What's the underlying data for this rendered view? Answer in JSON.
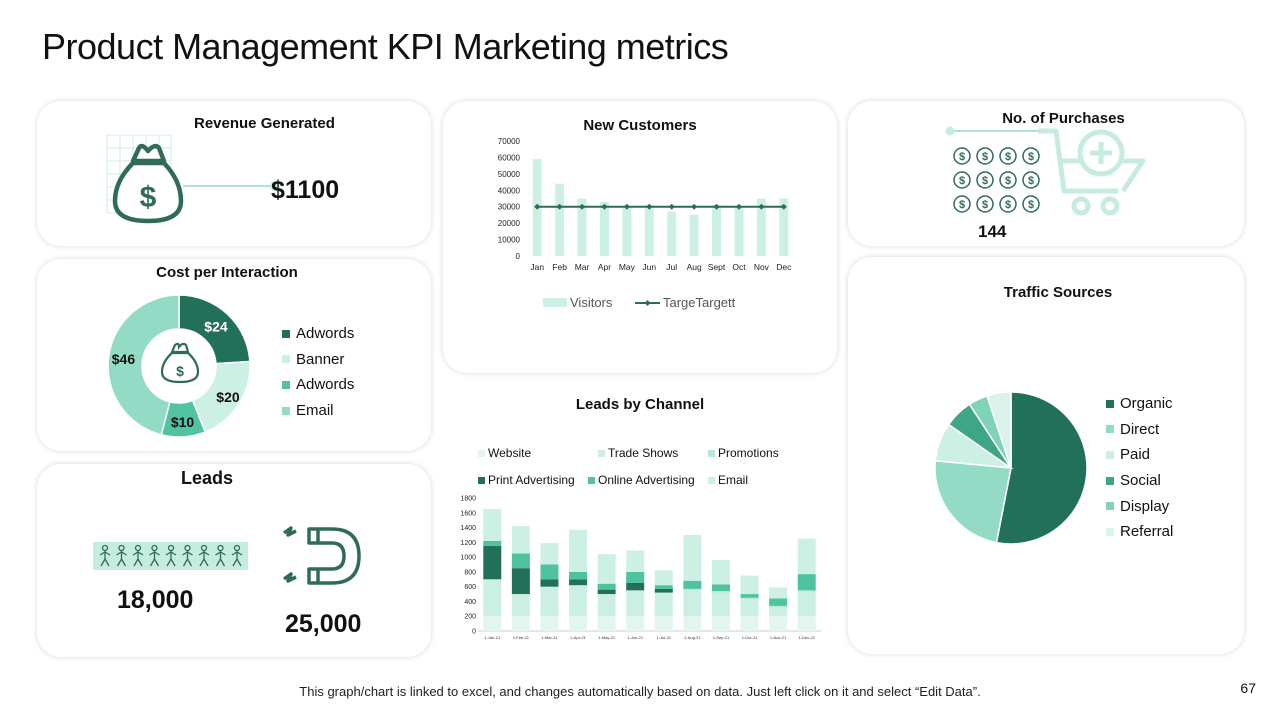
{
  "page": {
    "title": "Product Management KPI Marketing metrics",
    "footer": "This graph/chart is linked to excel, and changes automatically based on data.  Just left click on it and select “Edit Data”.",
    "page_number": "67"
  },
  "revenue": {
    "title": "Revenue Generated",
    "value": "$1100"
  },
  "purchases": {
    "title": "No. of Purchases",
    "value": "144"
  },
  "cpi": {
    "title": "Cost per Interaction"
  },
  "leads": {
    "title": "Leads",
    "value1": "18,000",
    "value2": "25,000"
  },
  "traffic": {
    "title": "Traffic Sources"
  },
  "new_customers": {
    "title": "New Customers"
  },
  "leads_channel": {
    "title": "Leads by Channel"
  },
  "colors": {
    "dark": "#22705a",
    "mid": "#52c3a1",
    "light": "#94dbc6",
    "pale": "#cdf0e5",
    "icon": "#2f6b58"
  },
  "chart_data": [
    {
      "type": "bar",
      "title": "New Customers",
      "categories": [
        "Jan",
        "Feb",
        "Mar",
        "Apr",
        "May",
        "Jun",
        "Jul",
        "Aug",
        "Sept",
        "Oct",
        "Nov",
        "Dec"
      ],
      "series": [
        {
          "name": "Visitors",
          "kind": "bar",
          "values": [
            59000,
            44000,
            35000,
            33000,
            30000,
            31000,
            27000,
            25000,
            31000,
            30000,
            35000,
            35000
          ]
        },
        {
          "name": "TargeTargett",
          "kind": "line",
          "values": [
            30000,
            30000,
            30000,
            30000,
            30000,
            30000,
            30000,
            30000,
            30000,
            30000,
            30000,
            30000
          ]
        }
      ],
      "ylim": [
        0,
        70000
      ],
      "yticks": [
        "0",
        "10000",
        "20000",
        "30000",
        "40000",
        "50000",
        "60000",
        "70000"
      ],
      "legend": [
        "Visitors",
        "TargeTargett"
      ]
    },
    {
      "type": "pie",
      "title": "Cost per Interaction",
      "donut": true,
      "labels": [
        "Adwords",
        "Banner",
        "Adwords",
        "Email"
      ],
      "values": [
        24,
        20,
        10,
        46
      ],
      "value_labels": [
        "$24",
        "$20",
        "$10",
        "$46"
      ]
    },
    {
      "type": "pie",
      "title": "Traffic Sources",
      "labels": [
        "Organic",
        "Direct",
        "Paid",
        "Social",
        "Display",
        "Referral"
      ],
      "values": [
        52,
        23,
        8,
        6,
        4,
        5
      ]
    },
    {
      "type": "bar",
      "stacked": true,
      "title": "Leads by Channel",
      "categories": [
        "1-Jan-21",
        "1-Feb-21",
        "1-Mar-21",
        "1-Apr-21",
        "1-May-21",
        "1-Jun-21",
        "1-Jul-21",
        "1-Aug-21",
        "1-Sep-21",
        "1-Oct-21",
        "1-Nov-21",
        "1-Dec-21"
      ],
      "series": [
        {
          "name": "Website",
          "values": [
            200,
            200,
            200,
            200,
            200,
            200,
            200,
            200,
            200,
            200,
            200,
            200
          ]
        },
        {
          "name": "Trade Shows",
          "values": [
            500,
            300,
            400,
            420,
            300,
            350,
            320,
            350,
            320,
            230,
            120,
            330
          ]
        },
        {
          "name": "Promotions",
          "values": [
            0,
            0,
            0,
            0,
            0,
            0,
            0,
            20,
            20,
            20,
            20,
            20
          ]
        },
        {
          "name": "Print Advertising",
          "values": [
            450,
            350,
            100,
            80,
            60,
            100,
            50,
            0,
            0,
            0,
            0,
            0
          ]
        },
        {
          "name": "Online Advertising",
          "values": [
            70,
            200,
            200,
            100,
            80,
            150,
            50,
            110,
            90,
            50,
            100,
            220
          ]
        },
        {
          "name": "Email",
          "values": [
            430,
            370,
            290,
            570,
            400,
            290,
            200,
            620,
            330,
            250,
            150,
            480
          ]
        }
      ],
      "ylim": [
        0,
        1800
      ],
      "yticks": [
        "0",
        "200",
        "400",
        "600",
        "800",
        "1000",
        "1200",
        "1400",
        "1600",
        "1800"
      ],
      "legend": [
        "Website",
        "Trade Shows",
        "Promotions",
        "Print Advertising",
        "Online Advertising",
        "Email"
      ]
    }
  ]
}
